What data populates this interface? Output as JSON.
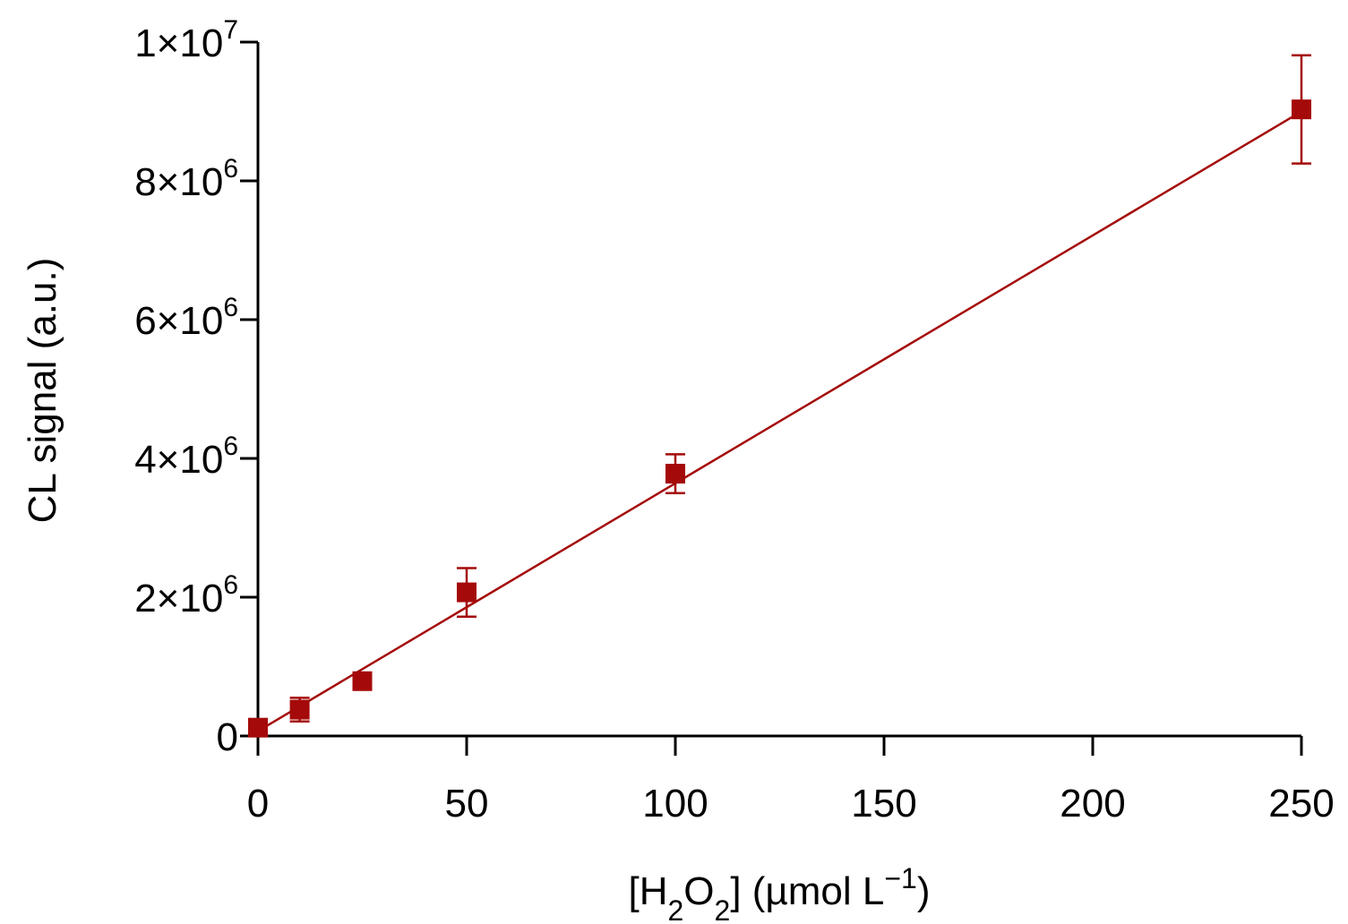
{
  "chart_data": {
    "type": "scatter",
    "title": "",
    "xlabel": "[H2O2] (µmol L−1)",
    "xlabel_parts": {
      "pre": "[H",
      "sub1": "2",
      "mid": "O",
      "sub2": "2",
      "post": "] (µmol L",
      "sup": "−1",
      "end": ")"
    },
    "ylabel": "CL signal (a.u.)",
    "xlim": [
      0,
      250
    ],
    "ylim": [
      0,
      10000000
    ],
    "x_ticks": [
      {
        "value": 0,
        "label": "0"
      },
      {
        "value": 50,
        "label": "50"
      },
      {
        "value": 100,
        "label": "100"
      },
      {
        "value": 150,
        "label": "150"
      },
      {
        "value": 200,
        "label": "200"
      },
      {
        "value": 250,
        "label": "250"
      }
    ],
    "y_ticks": [
      {
        "value": 0,
        "base": "0",
        "exp": ""
      },
      {
        "value": 2000000,
        "base": "2×10",
        "exp": "6"
      },
      {
        "value": 4000000,
        "base": "4×10",
        "exp": "6"
      },
      {
        "value": 6000000,
        "base": "6×10",
        "exp": "6"
      },
      {
        "value": 8000000,
        "base": "8×10",
        "exp": "6"
      },
      {
        "value": 10000000,
        "base": "1×10",
        "exp": "7"
      }
    ],
    "color": "#a50a0a",
    "points": [
      {
        "x": 0,
        "y": 120000,
        "err": 60000
      },
      {
        "x": 10,
        "y": 380000,
        "err": 170000
      },
      {
        "x": 25,
        "y": 790000,
        "err": 90000
      },
      {
        "x": 50,
        "y": 2070000,
        "err": 350000
      },
      {
        "x": 100,
        "y": 3780000,
        "err": 280000
      },
      {
        "x": 250,
        "y": 9030000,
        "err": 780000
      }
    ],
    "fit_line": {
      "x": [
        0,
        250
      ],
      "y": [
        70000,
        9000000
      ]
    },
    "grid": false,
    "legend": "none"
  }
}
